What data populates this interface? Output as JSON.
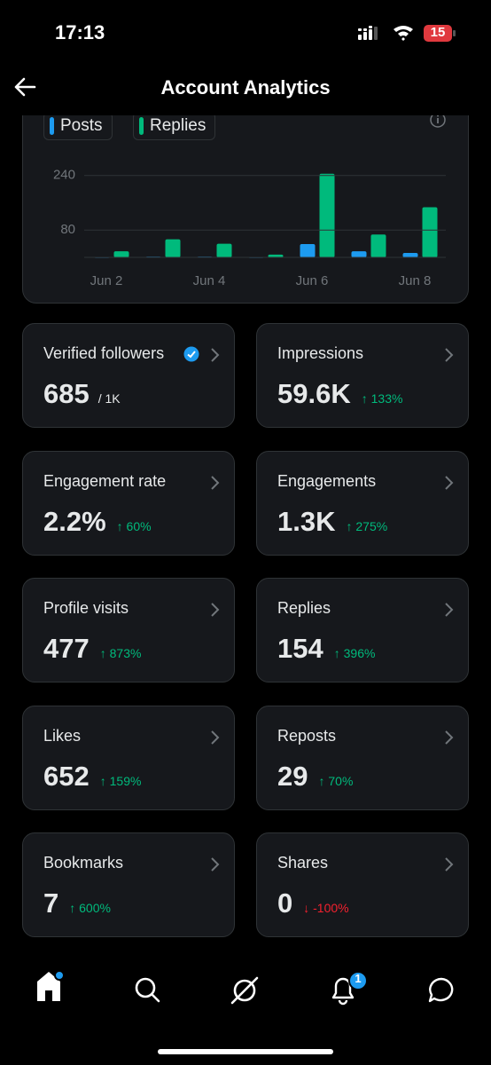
{
  "status_bar": {
    "time": "17:13",
    "battery": "15"
  },
  "header": {
    "title": "Account Analytics"
  },
  "chart_data": {
    "type": "bar",
    "categories": [
      "Jun 2",
      null,
      "Jun 4",
      null,
      "Jun 6",
      null,
      "Jun 8"
    ],
    "series": [
      {
        "name": "Posts",
        "color": "#1d9bf0",
        "values": [
          1,
          2,
          2,
          1,
          39,
          18,
          13
        ]
      },
      {
        "name": "Replies",
        "color": "#00ba7c",
        "values": [
          18,
          53,
          40,
          8,
          245,
          67,
          147
        ]
      }
    ],
    "ylim": [
      0,
      260
    ],
    "yticks": [
      80,
      240
    ],
    "grid": true
  },
  "cards": [
    {
      "label": "Verified followers",
      "value": "685",
      "suffix": "/ 1K"
    },
    {
      "label": "Impressions",
      "value": "59.6K",
      "change": "↑ 133%",
      "change_color": "#00ba7c"
    },
    {
      "label": "Engagement rate",
      "value": "2.2%",
      "change": "↑ 60%",
      "change_color": "#00ba7c"
    },
    {
      "label": "Engagements",
      "value": "1.3K",
      "change": "↑ 275%",
      "change_color": "#00ba7c"
    },
    {
      "label": "Profile visits",
      "value": "477",
      "change": "↑ 873%",
      "change_color": "#00ba7c"
    },
    {
      "label": "Replies",
      "value": "154",
      "change": "↑ 396%",
      "change_color": "#00ba7c"
    },
    {
      "label": "Likes",
      "value": "652",
      "change": "↑ 159%",
      "change_color": "#00ba7c"
    },
    {
      "label": "Reposts",
      "value": "29",
      "change": "↑ 70%",
      "change_color": "#00ba7c"
    },
    {
      "label": "Bookmarks",
      "value": "7",
      "change": "↑ 600%",
      "change_color": "#00ba7c"
    },
    {
      "label": "Shares",
      "value": "0",
      "change": "↓ -100%",
      "change_color": "#f4212e"
    }
  ],
  "nav": {
    "notification_badge": "1"
  }
}
